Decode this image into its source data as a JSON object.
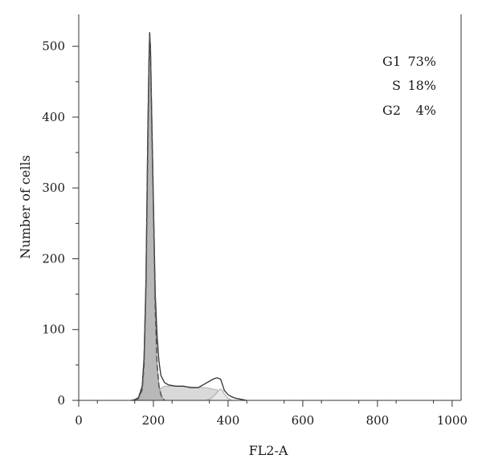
{
  "chart_data": {
    "type": "area",
    "title": "",
    "xlabel": "FL2-A",
    "ylabel": "Number of cells",
    "xlim": [
      0,
      1024
    ],
    "ylim": [
      0,
      545
    ],
    "xticks": [
      0,
      200,
      400,
      600,
      800,
      1000
    ],
    "yticks": [
      0,
      100,
      200,
      300,
      400,
      500
    ],
    "grid": false,
    "annotations": [
      {
        "phase": "G1",
        "value": "73%"
      },
      {
        "phase": "S",
        "value": "18%"
      },
      {
        "phase": "G2",
        "value": "4%"
      }
    ],
    "series": [
      {
        "role": "measured-histogram",
        "x": [
          140,
          150,
          160,
          170,
          175,
          180,
          185,
          188,
          190,
          192,
          195,
          200,
          205,
          210,
          215,
          220,
          230,
          240,
          260,
          280,
          300,
          320,
          340,
          360,
          370,
          380,
          385,
          390,
          400,
          410,
          420,
          430,
          440,
          450
        ],
        "y": [
          0,
          1,
          4,
          20,
          60,
          170,
          380,
          480,
          520,
          500,
          420,
          280,
          150,
          90,
          55,
          35,
          25,
          22,
          20,
          20,
          18,
          18,
          24,
          30,
          32,
          30,
          22,
          14,
          8,
          5,
          3,
          2,
          1,
          0
        ]
      },
      {
        "role": "g1-fit",
        "x": [
          150,
          160,
          170,
          175,
          180,
          185,
          188,
          190,
          192,
          195,
          200,
          205,
          210,
          215,
          220,
          225,
          230
        ],
        "y": [
          0,
          3,
          15,
          50,
          160,
          360,
          470,
          515,
          495,
          410,
          270,
          130,
          50,
          20,
          8,
          3,
          0
        ]
      },
      {
        "role": "s-phase-fit",
        "x": [
          170,
          190,
          210,
          230,
          260,
          300,
          340,
          370,
          380,
          390,
          400
        ],
        "y": [
          0,
          6,
          14,
          20,
          20,
          19,
          18,
          15,
          10,
          4,
          0
        ]
      },
      {
        "role": "g2-fit",
        "x": [
          340,
          355,
          365,
          375,
          380,
          385,
          390,
          400,
          410
        ],
        "y": [
          0,
          3,
          8,
          14,
          16,
          14,
          9,
          3,
          0
        ]
      }
    ]
  }
}
